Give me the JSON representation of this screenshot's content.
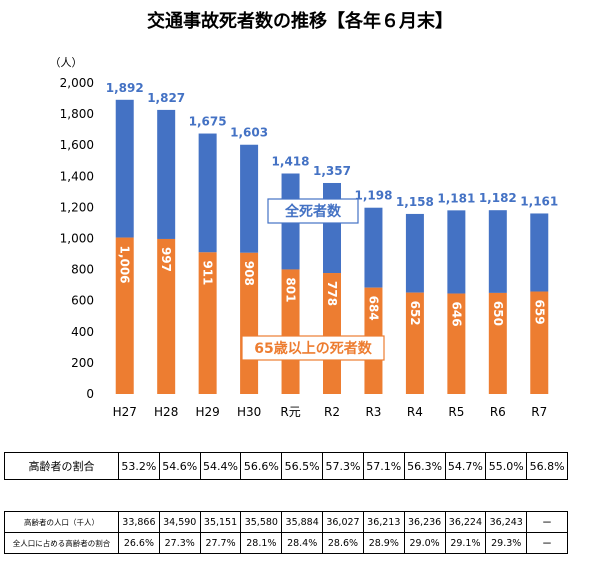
{
  "chart_data": {
    "type": "bar",
    "title": "交通事故死者数の推移【各年６月末】",
    "unit_label": "（人）",
    "categories": [
      "H27",
      "H28",
      "H29",
      "H30",
      "R元",
      "R2",
      "R3",
      "R4",
      "R5",
      "R6",
      "R7"
    ],
    "ylim": [
      0,
      2000
    ],
    "yticks": [
      0,
      200,
      400,
      600,
      800,
      1000,
      1200,
      1400,
      1600,
      1800,
      2000
    ],
    "ytick_labels": [
      "0",
      "200",
      "400",
      "600",
      "800",
      "1,000",
      "1,200",
      "1,400",
      "1,600",
      "1,800",
      "2,000"
    ],
    "stacked": true,
    "series": [
      {
        "name": "65歳以上の死者数",
        "color": "#ED7D31",
        "values": [
          1006,
          997,
          911,
          908,
          801,
          778,
          684,
          652,
          646,
          650,
          659
        ],
        "labels": [
          "1,006",
          "997",
          "911",
          "908",
          "801",
          "778",
          "684",
          "652",
          "646",
          "650",
          "659"
        ]
      },
      {
        "name": "全死者数",
        "color": "#4472C4",
        "totals": [
          1892,
          1827,
          1675,
          1603,
          1418,
          1357,
          1198,
          1158,
          1181,
          1182,
          1161
        ],
        "labels": [
          "1,892",
          "1,827",
          "1,675",
          "1,603",
          "1,418",
          "1,357",
          "1,198",
          "1,158",
          "1,181",
          "1,182",
          "1,161"
        ]
      }
    ],
    "grid": false
  },
  "ratio_table": {
    "label": "高齢者の割合",
    "values": [
      "53.2%",
      "54.6%",
      "54.4%",
      "56.6%",
      "56.5%",
      "57.3%",
      "57.1%",
      "56.3%",
      "54.7%",
      "55.0%",
      "56.8%"
    ]
  },
  "population_table": {
    "rows": [
      {
        "label": "高齢者の人口（千人）",
        "values": [
          "33,866",
          "34,590",
          "35,151",
          "35,580",
          "35,884",
          "36,027",
          "36,213",
          "36,236",
          "36,224",
          "36,243",
          "ー"
        ]
      },
      {
        "label": "全人口に占める高齢者の割合",
        "values": [
          "26.6%",
          "27.3%",
          "27.7%",
          "28.1%",
          "28.4%",
          "28.6%",
          "28.9%",
          "29.0%",
          "29.1%",
          "29.3%",
          "ー"
        ]
      }
    ]
  }
}
